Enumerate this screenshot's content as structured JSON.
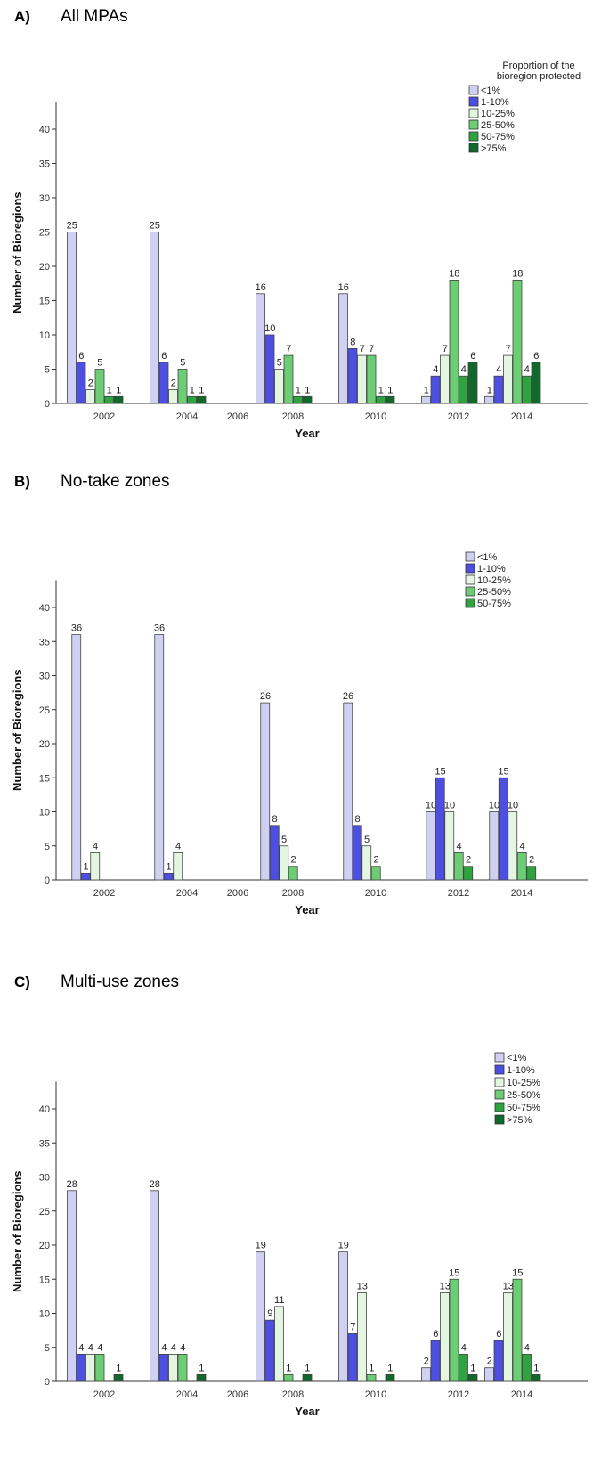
{
  "chart_data": [
    {
      "type": "bar",
      "panel_letter": "A)",
      "title": "All MPAs",
      "xlabel": "Year",
      "ylabel": "Number of Bioregions",
      "ylim": [
        0,
        44
      ],
      "yticks": [
        0,
        5,
        10,
        15,
        20,
        25,
        30,
        35,
        40
      ],
      "grid": false,
      "legend_position": "top-right",
      "legend_title": [
        "Proportion of the",
        "bioregion protected"
      ],
      "categories": [
        "2002",
        "2004",
        "2006",
        "2008",
        "2010",
        "2012",
        "2014"
      ],
      "series": [
        {
          "name": "<1%",
          "values": [
            25,
            25,
            null,
            16,
            16,
            1,
            1
          ]
        },
        {
          "name": "1-10%",
          "values": [
            6,
            6,
            null,
            10,
            8,
            4,
            4
          ]
        },
        {
          "name": "10-25%",
          "values": [
            2,
            2,
            null,
            5,
            7,
            7,
            7
          ]
        },
        {
          "name": "25-50%",
          "values": [
            5,
            5,
            null,
            7,
            7,
            18,
            18
          ]
        },
        {
          "name": "50-75%",
          "values": [
            1,
            1,
            null,
            1,
            1,
            4,
            4
          ]
        },
        {
          "name": ">75%",
          "values": [
            1,
            1,
            null,
            1,
            1,
            6,
            6
          ]
        }
      ]
    },
    {
      "type": "bar",
      "panel_letter": "B)",
      "title": "No-take zones",
      "xlabel": "Year",
      "ylabel": "Number of Bioregions",
      "ylim": [
        0,
        44
      ],
      "yticks": [
        0,
        5,
        10,
        15,
        20,
        25,
        30,
        35,
        40
      ],
      "grid": false,
      "legend_position": "top-right",
      "legend_title": [],
      "categories": [
        "2002",
        "2004",
        "2006",
        "2008",
        "2010",
        "2012",
        "2014"
      ],
      "series": [
        {
          "name": "<1%",
          "values": [
            36,
            36,
            null,
            26,
            26,
            10,
            10
          ]
        },
        {
          "name": "1-10%",
          "values": [
            1,
            1,
            null,
            8,
            8,
            15,
            15
          ]
        },
        {
          "name": "10-25%",
          "values": [
            4,
            4,
            null,
            5,
            5,
            10,
            10
          ]
        },
        {
          "name": "25-50%",
          "values": [
            null,
            null,
            null,
            2,
            2,
            4,
            4
          ]
        },
        {
          "name": "50-75%",
          "values": [
            null,
            null,
            null,
            null,
            null,
            2,
            2
          ]
        }
      ]
    },
    {
      "type": "bar",
      "panel_letter": "C)",
      "title": "Multi-use zones",
      "xlabel": "Year",
      "ylabel": "Number of Bioregions",
      "ylim": [
        0,
        44
      ],
      "yticks": [
        0,
        5,
        10,
        15,
        20,
        25,
        30,
        35,
        40
      ],
      "grid": false,
      "legend_position": "right",
      "legend_title": [],
      "categories": [
        "2002",
        "2004",
        "2006",
        "2008",
        "2010",
        "2012",
        "2014"
      ],
      "series": [
        {
          "name": "<1%",
          "values": [
            28,
            28,
            null,
            19,
            19,
            2,
            2
          ]
        },
        {
          "name": "1-10%",
          "values": [
            4,
            4,
            null,
            9,
            7,
            6,
            6
          ]
        },
        {
          "name": "10-25%",
          "values": [
            4,
            4,
            null,
            11,
            13,
            13,
            13
          ]
        },
        {
          "name": "25-50%",
          "values": [
            4,
            4,
            null,
            1,
            1,
            15,
            15
          ]
        },
        {
          "name": "50-75%",
          "values": [
            null,
            null,
            null,
            null,
            null,
            4,
            4
          ]
        },
        {
          "name": ">75%",
          "values": [
            1,
            1,
            null,
            1,
            1,
            1,
            1
          ]
        }
      ]
    }
  ],
  "colors": {
    "<1%": "#cfd0f2",
    "1-10%": "#4d4ee2",
    "10-25%": "#e4f6e2",
    "25-50%": "#6ccd74",
    "50-75%": "#2fa33f",
    ">75%": "#12682a"
  }
}
